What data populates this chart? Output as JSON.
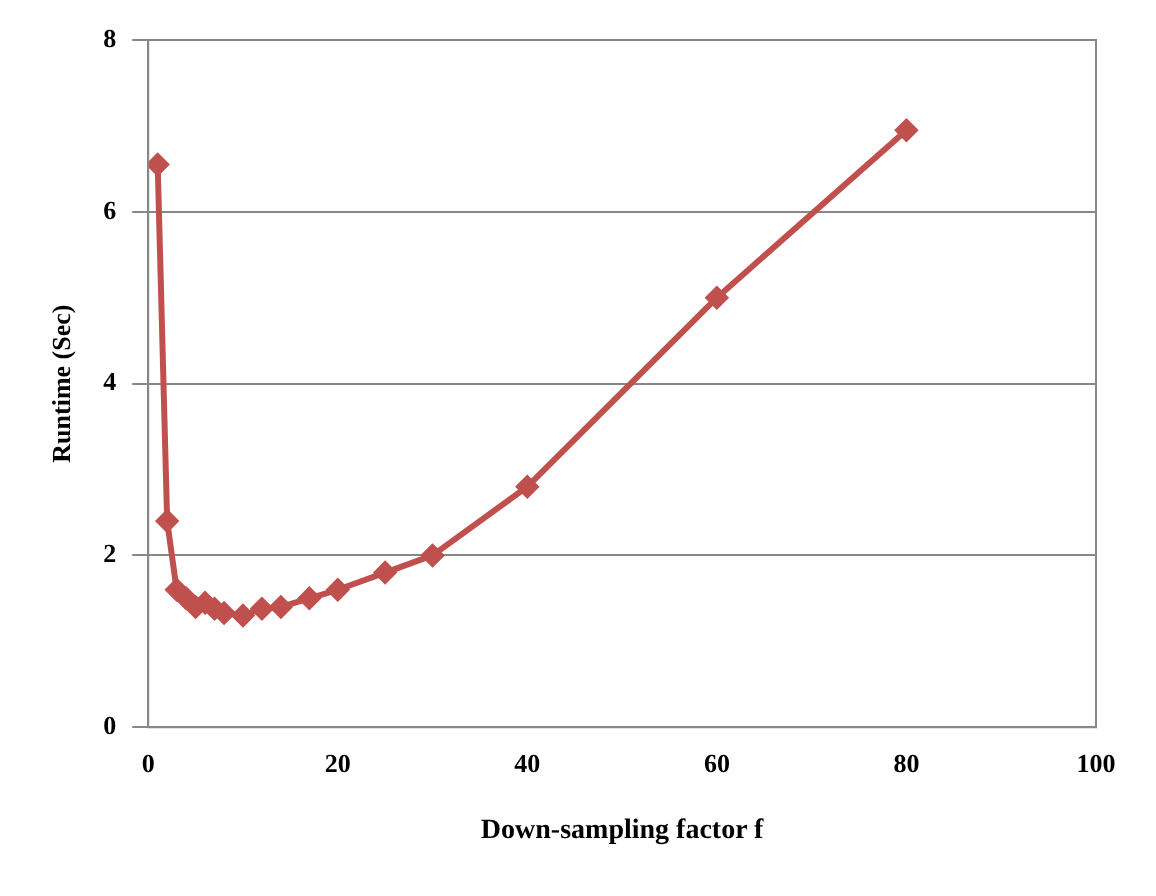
{
  "chart_data": {
    "type": "line",
    "xlabel": "Down-sampling factor f",
    "ylabel": "Runtime (Sec)",
    "x": [
      1,
      2,
      3,
      4,
      5,
      6,
      7,
      8,
      10,
      12,
      14,
      17,
      20,
      25,
      30,
      40,
      60,
      80
    ],
    "series": [
      {
        "color": "#c0504d",
        "values": [
          6.55,
          2.4,
          1.6,
          1.5,
          1.4,
          1.45,
          1.38,
          1.33,
          1.3,
          1.38,
          1.4,
          1.5,
          1.6,
          1.8,
          2.0,
          2.8,
          5.0,
          6.95
        ]
      }
    ],
    "xlim": [
      0,
      100
    ],
    "xticks": [
      0,
      20,
      40,
      60,
      80,
      100
    ],
    "ylim": [
      0,
      8
    ],
    "yticks": [
      0,
      2,
      4,
      6,
      8
    ],
    "grid": "y",
    "legend": false,
    "marker": "diamond",
    "line_style": "solid"
  }
}
